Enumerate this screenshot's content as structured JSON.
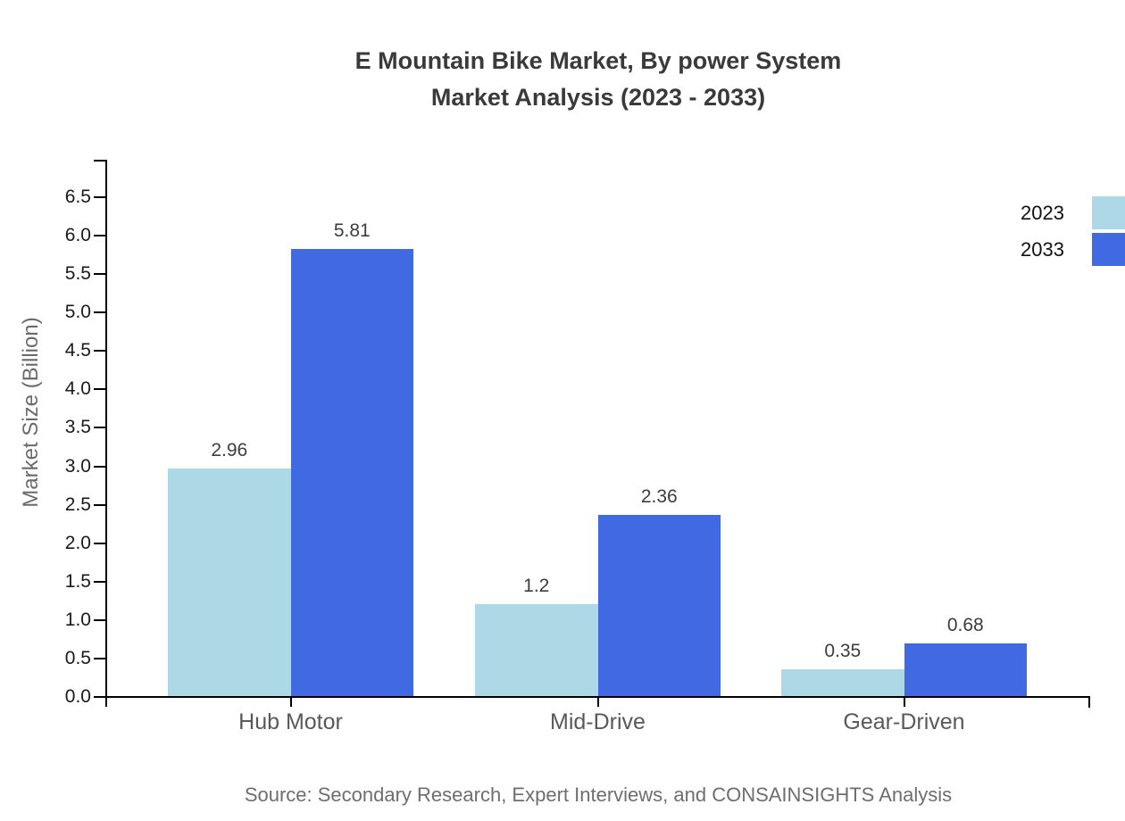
{
  "title": {
    "line1": "E Mountain Bike Market, By power System",
    "line2": "Market Analysis (2023 - 2033)"
  },
  "source": "Source: Secondary Research, Expert Interviews, and CONSAINSIGHTS Analysis",
  "chart_data": {
    "type": "bar",
    "title": "E Mountain Bike Market, By power System Market Analysis (2023 - 2033)",
    "categories": [
      "Hub Motor",
      "Mid-Drive",
      "Gear-Driven"
    ],
    "series": [
      {
        "name": "2023",
        "color": "#ADD8E6",
        "values": [
          2.96,
          1.2,
          0.35
        ]
      },
      {
        "name": "2033",
        "color": "#4169E1",
        "values": [
          5.81,
          2.36,
          0.68
        ]
      }
    ],
    "xlabel": "",
    "ylabel": "Market Size (Billion)",
    "ylim": [
      0,
      7.0
    ],
    "yticks": [
      0.0,
      0.5,
      1.0,
      1.5,
      2.0,
      2.5,
      3.0,
      3.5,
      4.0,
      4.5,
      5.0,
      5.5,
      6.0,
      6.5
    ],
    "grid": false,
    "legend_position": "top-right",
    "value_label_format": "as-is"
  }
}
